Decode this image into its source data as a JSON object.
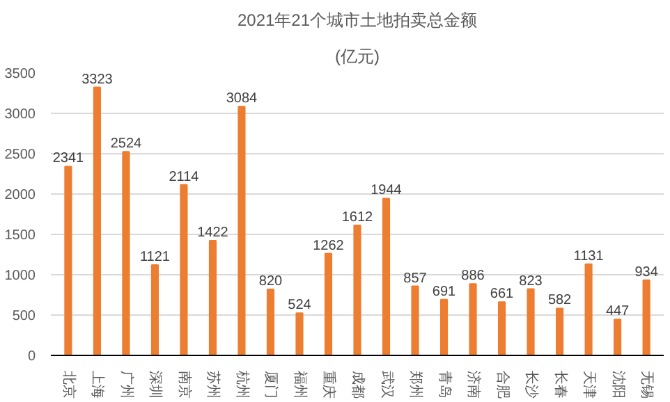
{
  "chart_data": {
    "type": "bar",
    "title": "2021年21个城市土地拍卖总金额",
    "subtitle": "(亿元)",
    "categories": [
      "北京",
      "上海",
      "广州",
      "深圳",
      "南京",
      "苏州",
      "杭州",
      "厦门",
      "福州",
      "重庆",
      "成都",
      "武汉",
      "郑州",
      "青岛",
      "济南",
      "合肥",
      "长沙",
      "长春",
      "天津",
      "沈阳",
      "无锡"
    ],
    "values": [
      2341,
      3323,
      2524,
      1121,
      2114,
      1422,
      3084,
      820,
      524,
      1262,
      1612,
      1944,
      857,
      691,
      886,
      661,
      823,
      582,
      1131,
      447,
      934
    ],
    "color": "#ed7d31",
    "ylim": [
      0,
      3500
    ],
    "yticks": [
      0,
      500,
      1000,
      1500,
      2000,
      2500,
      3000,
      3500
    ],
    "grid": "y",
    "data_labels": true
  }
}
